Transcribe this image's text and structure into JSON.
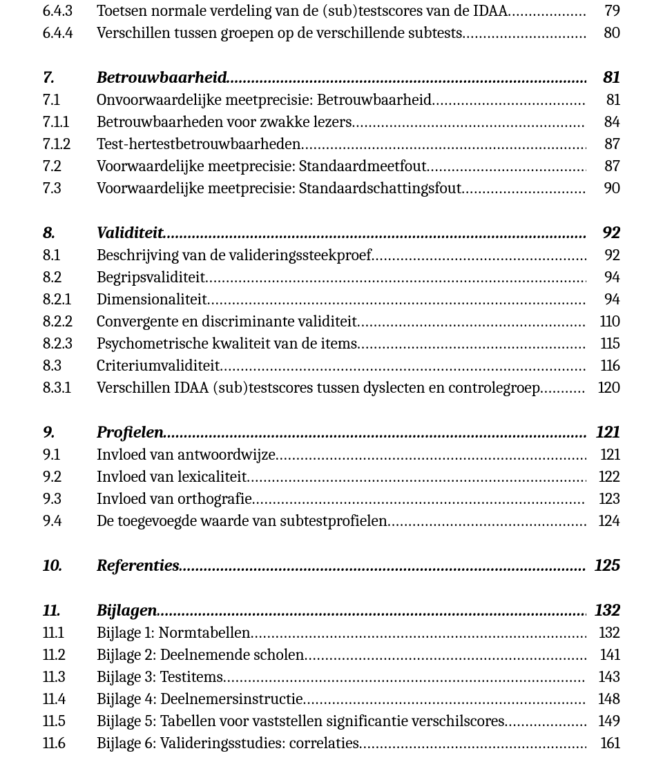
{
  "toc": [
    {
      "kind": "normal",
      "num": "6.4.3",
      "title": "Toetsen normale verdeling van de (sub)testscores van de IDAA",
      "page": "79"
    },
    {
      "kind": "normal",
      "num": "6.4.4",
      "title": "Verschillen tussen groepen op de verschillende subtests",
      "page": "80"
    },
    {
      "kind": "spacer"
    },
    {
      "kind": "heading",
      "num": "7.",
      "title": "Betrouwbaarheid",
      "page": "81"
    },
    {
      "kind": "normal",
      "num": "7.1",
      "title": "Onvoorwaardelijke meetprecisie: Betrouwbaarheid",
      "page": "81"
    },
    {
      "kind": "normal",
      "num": "7.1.1",
      "title": "Betrouwbaarheden voor zwakke lezers",
      "page": "84"
    },
    {
      "kind": "normal",
      "num": "7.1.2",
      "title": "Test-hertestbetrouwbaarheden",
      "page": "87"
    },
    {
      "kind": "normal",
      "num": "7.2",
      "title": "Voorwaardelijke meetprecisie: Standaardmeetfout",
      "page": "87"
    },
    {
      "kind": "normal",
      "num": "7.3",
      "title": "Voorwaardelijke meetprecisie: Standaardschattingsfout",
      "page": "90"
    },
    {
      "kind": "spacer"
    },
    {
      "kind": "heading",
      "num": "8.",
      "title": "Validiteit",
      "page": "92"
    },
    {
      "kind": "normal",
      "num": "8.1",
      "title": "Beschrijving van de valideringssteekproef",
      "page": "92"
    },
    {
      "kind": "normal",
      "num": "8.2",
      "title": "Begripsvaliditeit",
      "page": "94"
    },
    {
      "kind": "normal",
      "num": "8.2.1",
      "title": "Dimensionaliteit",
      "page": "94"
    },
    {
      "kind": "normal",
      "num": "8.2.2",
      "title": "Convergente en discriminante validiteit",
      "page": "110"
    },
    {
      "kind": "normal",
      "num": "8.2.3",
      "title": "Psychometrische kwaliteit van de items",
      "page": "115"
    },
    {
      "kind": "normal",
      "num": "8.3",
      "title": "Criteriumvaliditeit",
      "page": "116"
    },
    {
      "kind": "normal",
      "num": "8.3.1",
      "title": "Verschillen IDAA (sub)testscores tussen dyslecten en controlegroep",
      "page": "120"
    },
    {
      "kind": "spacer"
    },
    {
      "kind": "heading",
      "num": "9.",
      "title": "Profielen",
      "page": "121"
    },
    {
      "kind": "normal",
      "num": "9.1",
      "title": "Invloed van antwoordwijze",
      "page": "121"
    },
    {
      "kind": "normal",
      "num": "9.2",
      "title": "Invloed van lexicaliteit",
      "page": "122"
    },
    {
      "kind": "normal",
      "num": "9.3",
      "title": "Invloed van orthografie",
      "page": "123"
    },
    {
      "kind": "normal",
      "num": "9.4",
      "title": "De toegevoegde waarde van subtestprofielen",
      "page": "124"
    },
    {
      "kind": "spacer"
    },
    {
      "kind": "heading",
      "num": "10.",
      "title": "Referenties",
      "page": "125"
    },
    {
      "kind": "spacer"
    },
    {
      "kind": "heading",
      "num": "11.",
      "title": "Bijlagen",
      "page": "132"
    },
    {
      "kind": "normal",
      "num": "11.1",
      "title": "Bijlage 1: Normtabellen",
      "page": "132"
    },
    {
      "kind": "normal",
      "num": "11.2",
      "title": "Bijlage 2: Deelnemende scholen",
      "page": "141"
    },
    {
      "kind": "normal",
      "num": "11.3",
      "title": "Bijlage 3: Testitems",
      "page": "143"
    },
    {
      "kind": "normal",
      "num": "11.4",
      "title": "Bijlage 4: Deelnemersinstructie",
      "page": "148"
    },
    {
      "kind": "normal",
      "num": "11.5",
      "title": "Bijlage 5: Tabellen voor vaststellen significantie verschilscores",
      "page": "149"
    },
    {
      "kind": "normal",
      "num": "11.6",
      "title": "Bijlage 6: Valideringsstudies: correlaties",
      "page": "161"
    }
  ]
}
